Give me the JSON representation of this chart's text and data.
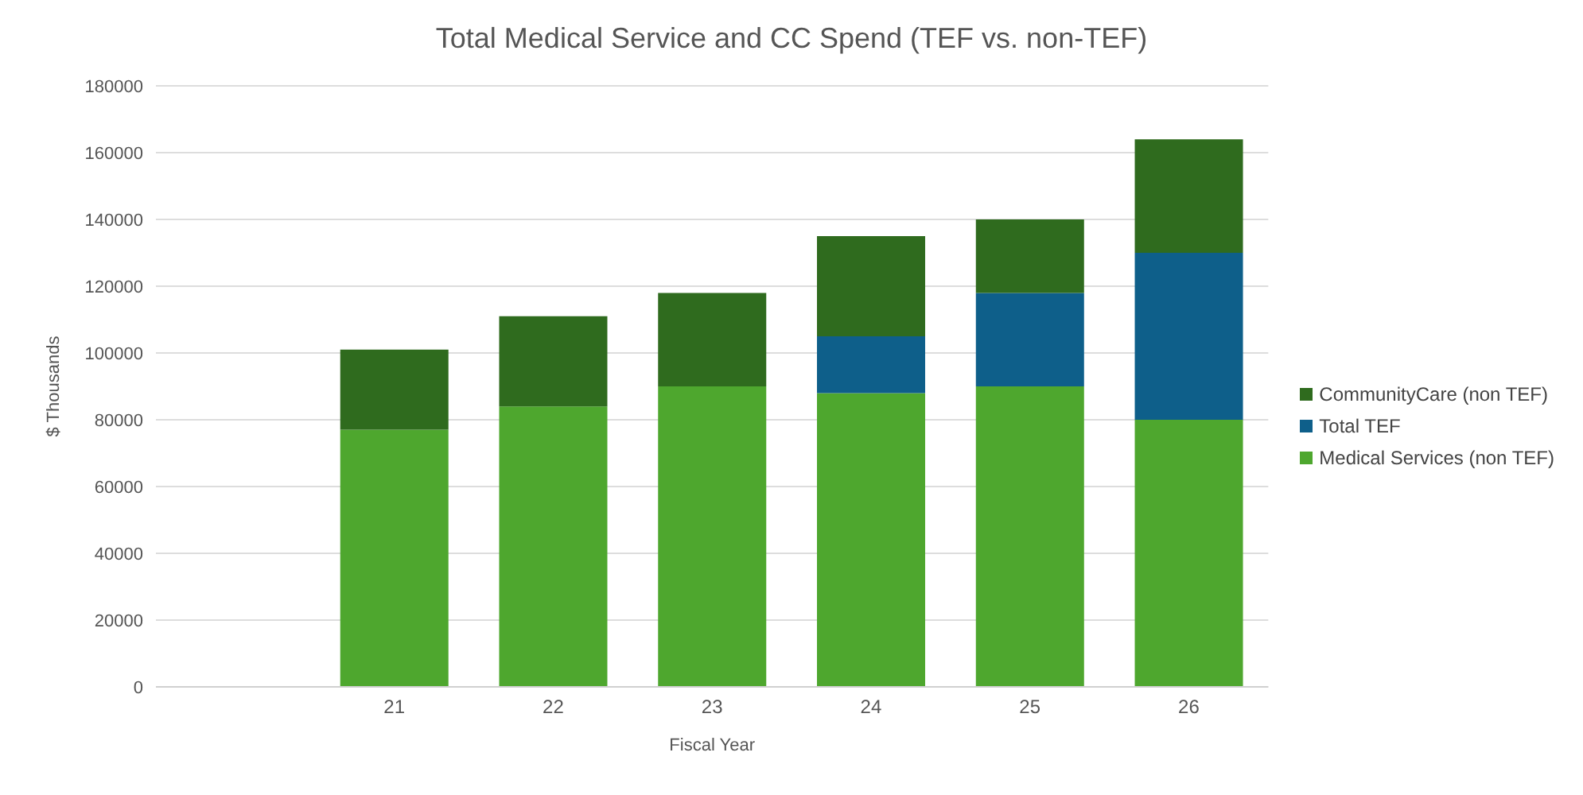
{
  "chart_data": {
    "type": "bar",
    "title": "Total Medical Service and CC Spend  (TEF vs. non-TEF)",
    "xlabel": "Fiscal Year",
    "ylabel": "$ Thousands",
    "categories": [
      null,
      "21",
      "22",
      "23",
      "24",
      "25",
      "26"
    ],
    "series": [
      {
        "name": "Medical Services (non TEF)",
        "color": "#4ea72e",
        "values": [
          null,
          77000,
          84000,
          90000,
          88000,
          90000,
          80000
        ]
      },
      {
        "name": "Total TEF",
        "color": "#0e5f8a",
        "values": [
          null,
          0,
          0,
          0,
          17000,
          28000,
          50000
        ]
      },
      {
        "name": "CommunityCare (non TEF)",
        "color": "#2f6b1e",
        "values": [
          null,
          24000,
          27000,
          28000,
          30000,
          22000,
          34000
        ]
      }
    ],
    "stacked": true,
    "ylim": [
      0,
      180000
    ],
    "yticks": [
      0,
      20000,
      40000,
      60000,
      80000,
      100000,
      120000,
      140000,
      160000,
      180000
    ],
    "grid": "y",
    "legend": "right"
  }
}
